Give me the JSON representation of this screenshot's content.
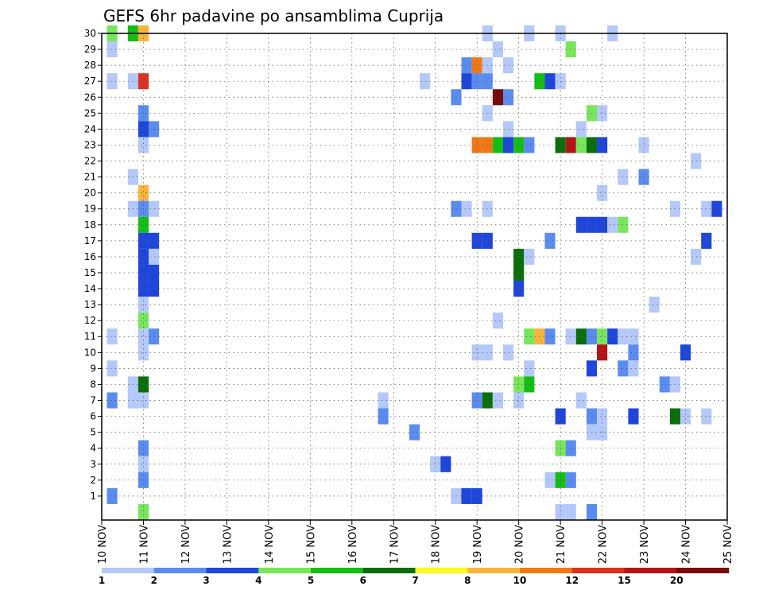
{
  "chart_data": {
    "type": "heatmap",
    "title": "GEFS 6hr padavine po ansamblima Cuprija",
    "xlabel": "",
    "ylabel": "",
    "y_ticks": [
      "1",
      "2",
      "3",
      "4",
      "5",
      "6",
      "7",
      "8",
      "9",
      "10",
      "11",
      "12",
      "13",
      "14",
      "15",
      "16",
      "17",
      "18",
      "19",
      "20",
      "21",
      "22",
      "23",
      "24",
      "25",
      "26",
      "27",
      "28",
      "29",
      "30"
    ],
    "x_ticks": [
      "10 NOV",
      "11 NOV",
      "12 NOV",
      "13 NOV",
      "14 NOV",
      "15 NOV",
      "16 NOV",
      "17 NOV",
      "18 NOV",
      "19 NOV",
      "20 NOV",
      "21 NOV",
      "22 NOV",
      "23 NOV",
      "24 NOV",
      "25 NOV"
    ],
    "x_range_days": [
      10,
      25
    ],
    "y_range": [
      0,
      30
    ],
    "grid": true,
    "legend_placement": "bottom",
    "colorbar": {
      "labels": [
        "1",
        "2",
        "3",
        "4",
        "5",
        "6",
        "7",
        "8",
        "10",
        "12",
        "15",
        "20"
      ],
      "colors": [
        "#b4c8fa",
        "#5a8cf0",
        "#1e46dc",
        "#78e65a",
        "#14be14",
        "#0a6e0a",
        "#fafa1e",
        "#fab43c",
        "#f07814",
        "#dc321e",
        "#b41414",
        "#780a0a"
      ]
    },
    "cells": [
      [
        10.25,
        30,
        "4"
      ],
      [
        10.25,
        29,
        "1"
      ],
      [
        10.25,
        27,
        "1"
      ],
      [
        10.25,
        11,
        "1"
      ],
      [
        10.25,
        9,
        "1"
      ],
      [
        10.25,
        7,
        "2"
      ],
      [
        10.25,
        1,
        "2"
      ],
      [
        10.75,
        30,
        "5"
      ],
      [
        10.75,
        27,
        "1"
      ],
      [
        10.75,
        21,
        "1"
      ],
      [
        10.75,
        19,
        "1"
      ],
      [
        10.75,
        8,
        "1"
      ],
      [
        10.75,
        7,
        "1"
      ],
      [
        11,
        30,
        "8"
      ],
      [
        11,
        27,
        "12"
      ],
      [
        11,
        25,
        "2"
      ],
      [
        11,
        24,
        "3"
      ],
      [
        11,
        23,
        "1"
      ],
      [
        11,
        20,
        "8"
      ],
      [
        11,
        19,
        "2"
      ],
      [
        11,
        18,
        "5"
      ],
      [
        11,
        17,
        "3"
      ],
      [
        11,
        16,
        "3"
      ],
      [
        11,
        15,
        "3"
      ],
      [
        11,
        14,
        "3"
      ],
      [
        11,
        13,
        "1"
      ],
      [
        11,
        12,
        "4"
      ],
      [
        11,
        11,
        "1"
      ],
      [
        11,
        10,
        "1"
      ],
      [
        11,
        8,
        "6"
      ],
      [
        11,
        7,
        "1"
      ],
      [
        11,
        4,
        "2"
      ],
      [
        11,
        3,
        "1"
      ],
      [
        11,
        2,
        "2"
      ],
      [
        11,
        0,
        "4"
      ],
      [
        11.25,
        24,
        "2"
      ],
      [
        11.25,
        19,
        "1"
      ],
      [
        11.25,
        17,
        "3"
      ],
      [
        11.25,
        16,
        "1"
      ],
      [
        11.25,
        15,
        "3"
      ],
      [
        11.25,
        14,
        "3"
      ],
      [
        11.25,
        11,
        "2"
      ],
      [
        16.75,
        7,
        "1"
      ],
      [
        16.75,
        6,
        "2"
      ],
      [
        17.5,
        5,
        "2"
      ],
      [
        17.75,
        27,
        "1"
      ],
      [
        18,
        3,
        "1"
      ],
      [
        18.25,
        3,
        "3"
      ],
      [
        18.5,
        26,
        "2"
      ],
      [
        18.5,
        19,
        "2"
      ],
      [
        18.5,
        1,
        "1"
      ],
      [
        18.75,
        28,
        "2"
      ],
      [
        18.75,
        27,
        "3"
      ],
      [
        18.75,
        19,
        "1"
      ],
      [
        18.75,
        1,
        "3"
      ],
      [
        19,
        28,
        "10"
      ],
      [
        19,
        27,
        "2"
      ],
      [
        19,
        23,
        "10"
      ],
      [
        19,
        17,
        "3"
      ],
      [
        19,
        10,
        "1"
      ],
      [
        19,
        7,
        "2"
      ],
      [
        19,
        1,
        "3"
      ],
      [
        19.25,
        30,
        "1"
      ],
      [
        19.25,
        28,
        "1"
      ],
      [
        19.25,
        27,
        "2"
      ],
      [
        19.25,
        25,
        "1"
      ],
      [
        19.25,
        23,
        "10"
      ],
      [
        19.25,
        19,
        "1"
      ],
      [
        19.25,
        17,
        "3"
      ],
      [
        19.25,
        10,
        "1"
      ],
      [
        19.25,
        7,
        "6"
      ],
      [
        19.5,
        29,
        "1"
      ],
      [
        19.5,
        26,
        "20"
      ],
      [
        19.5,
        23,
        "5"
      ],
      [
        19.5,
        12,
        "1"
      ],
      [
        19.5,
        7,
        "1"
      ],
      [
        19.75,
        28,
        "1"
      ],
      [
        19.75,
        26,
        "2"
      ],
      [
        19.75,
        24,
        "1"
      ],
      [
        19.75,
        23,
        "3"
      ],
      [
        19.75,
        10,
        "1"
      ],
      [
        20,
        23,
        "5"
      ],
      [
        20,
        16,
        "6"
      ],
      [
        20,
        15,
        "6"
      ],
      [
        20,
        14,
        "3"
      ],
      [
        20,
        8,
        "4"
      ],
      [
        20,
        7,
        "1"
      ],
      [
        20.25,
        30,
        "1"
      ],
      [
        20.25,
        23,
        "2"
      ],
      [
        20.25,
        16,
        "1"
      ],
      [
        20.25,
        11,
        "4"
      ],
      [
        20.25,
        9,
        "1"
      ],
      [
        20.25,
        8,
        "5"
      ],
      [
        20.5,
        27,
        "5"
      ],
      [
        20.5,
        11,
        "8"
      ],
      [
        20.75,
        27,
        "3"
      ],
      [
        20.75,
        17,
        "2"
      ],
      [
        20.75,
        11,
        "2"
      ],
      [
        20.75,
        2,
        "1"
      ],
      [
        21,
        30,
        "1"
      ],
      [
        21,
        27,
        "1"
      ],
      [
        21,
        23,
        "6"
      ],
      [
        21,
        6,
        "3"
      ],
      [
        21,
        4,
        "4"
      ],
      [
        21,
        2,
        "5"
      ],
      [
        21,
        0,
        "1"
      ],
      [
        21.25,
        29,
        "4"
      ],
      [
        21.25,
        23,
        "15"
      ],
      [
        21.25,
        11,
        "1"
      ],
      [
        21.25,
        4,
        "2"
      ],
      [
        21.25,
        2,
        "2"
      ],
      [
        21.25,
        0,
        "1"
      ],
      [
        21.5,
        24,
        "1"
      ],
      [
        21.5,
        23,
        "4"
      ],
      [
        21.5,
        18,
        "3"
      ],
      [
        21.5,
        11,
        "6"
      ],
      [
        21.5,
        7,
        "1"
      ],
      [
        21.75,
        25,
        "4"
      ],
      [
        21.75,
        23,
        "6"
      ],
      [
        21.75,
        18,
        "3"
      ],
      [
        21.75,
        11,
        "2"
      ],
      [
        21.75,
        9,
        "3"
      ],
      [
        21.75,
        6,
        "2"
      ],
      [
        21.75,
        5,
        "1"
      ],
      [
        21.75,
        0,
        "2"
      ],
      [
        22,
        25,
        "1"
      ],
      [
        22,
        23,
        "3"
      ],
      [
        22,
        20,
        "1"
      ],
      [
        22,
        18,
        "3"
      ],
      [
        22,
        11,
        "4"
      ],
      [
        22,
        10,
        "15"
      ],
      [
        22,
        6,
        "1"
      ],
      [
        22,
        5,
        "1"
      ],
      [
        22.25,
        30,
        "1"
      ],
      [
        22.25,
        18,
        "1"
      ],
      [
        22.25,
        11,
        "3"
      ],
      [
        22.5,
        21,
        "1"
      ],
      [
        22.5,
        18,
        "4"
      ],
      [
        22.5,
        11,
        "1"
      ],
      [
        22.5,
        9,
        "2"
      ],
      [
        22.75,
        11,
        "1"
      ],
      [
        22.75,
        10,
        "2"
      ],
      [
        22.75,
        9,
        "1"
      ],
      [
        22.75,
        6,
        "3"
      ],
      [
        23,
        23,
        "1"
      ],
      [
        23,
        21,
        "2"
      ],
      [
        23.25,
        13,
        "1"
      ],
      [
        23.5,
        8,
        "2"
      ],
      [
        23.75,
        19,
        "1"
      ],
      [
        23.75,
        8,
        "1"
      ],
      [
        23.75,
        6,
        "6"
      ],
      [
        24,
        10,
        "3"
      ],
      [
        24,
        6,
        "1"
      ],
      [
        24.25,
        22,
        "1"
      ],
      [
        24.25,
        16,
        "1"
      ],
      [
        24.5,
        19,
        "1"
      ],
      [
        24.5,
        17,
        "3"
      ],
      [
        24.5,
        6,
        "1"
      ],
      [
        24.75,
        19,
        "3"
      ]
    ]
  }
}
